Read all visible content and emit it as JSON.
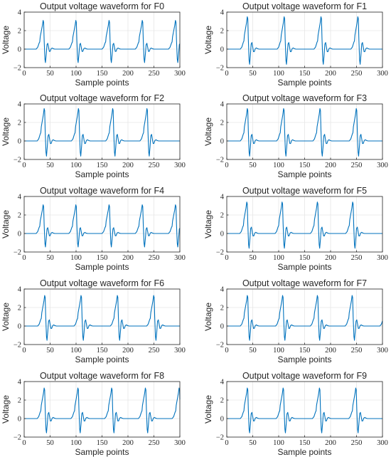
{
  "chart_data": [
    {
      "type": "line",
      "title": "Output voltage waveform for F0",
      "xlabel": "Sample points",
      "ylabel": "Voltage",
      "xlim": [
        0,
        300
      ],
      "ylim": [
        -2,
        4
      ],
      "xticks": [
        "0",
        "50",
        "100",
        "150",
        "200",
        "250",
        "300"
      ],
      "yticks": [
        "-2",
        "0",
        "2",
        "4"
      ],
      "grid": true,
      "series": [
        {
          "color": "#0072BD",
          "beat_onsets": [
            23,
            86,
            150,
            214,
            278
          ],
          "beat_amplitudes": [
            3.1,
            3.1,
            3.1,
            3.1,
            3.1
          ],
          "peak_value": 3.1,
          "trough_value": -1.5,
          "baseline": 0
        }
      ]
    },
    {
      "type": "line",
      "title": "Output voltage waveform for F1",
      "xlabel": "Sample points",
      "ylabel": "Voltage",
      "xlim": [
        0,
        300
      ],
      "ylim": [
        -2,
        4
      ],
      "xticks": [
        "0",
        "50",
        "100",
        "150",
        "200",
        "250",
        "300"
      ],
      "yticks": [
        "-2",
        "0",
        "2",
        "4"
      ],
      "grid": true,
      "series": [
        {
          "color": "#0072BD",
          "beat_onsets": [
            26,
            97,
            168,
            239
          ],
          "beat_amplitudes": [
            3.5,
            3.5,
            3.5,
            3.5
          ],
          "peak_value": 3.5,
          "trough_value": -1.5,
          "baseline": 0
        }
      ]
    },
    {
      "type": "line",
      "title": "Output voltage waveform for F2",
      "xlabel": "Sample points",
      "ylabel": "Voltage",
      "xlim": [
        0,
        300
      ],
      "ylim": [
        -2,
        4
      ],
      "xticks": [
        "0",
        "50",
        "100",
        "150",
        "200",
        "250",
        "300"
      ],
      "yticks": [
        "-2",
        "0",
        "2",
        "4"
      ],
      "grid": true,
      "series": [
        {
          "color": "#0072BD",
          "beat_onsets": [
            25,
            91,
            157,
            223
          ],
          "beat_amplitudes": [
            3.5,
            3.5,
            3.5,
            3.5
          ],
          "peak_value": 3.5,
          "trough_value": -1.6,
          "baseline": 0
        }
      ]
    },
    {
      "type": "line",
      "title": "Output voltage waveform for F3",
      "xlabel": "Sample points",
      "ylabel": "Voltage",
      "xlim": [
        0,
        300
      ],
      "ylim": [
        -2,
        4
      ],
      "xticks": [
        "0",
        "50",
        "100",
        "150",
        "200",
        "250",
        "300"
      ],
      "yticks": [
        "-2",
        "0",
        "2",
        "4"
      ],
      "grid": true,
      "series": [
        {
          "color": "#0072BD",
          "beat_onsets": [
            26,
            96,
            166,
            236
          ],
          "beat_amplitudes": [
            3.5,
            3.5,
            3.5,
            3.5
          ],
          "peak_value": 3.5,
          "trough_value": -1.6,
          "baseline": 0
        }
      ]
    },
    {
      "type": "line",
      "title": "Output voltage waveform for F4",
      "xlabel": "Sample points",
      "ylabel": "Voltage",
      "xlim": [
        0,
        300
      ],
      "ylim": [
        -2,
        4
      ],
      "xticks": [
        "0",
        "50",
        "100",
        "150",
        "200",
        "250",
        "300"
      ],
      "yticks": [
        "-2",
        "0",
        "2",
        "4"
      ],
      "grid": true,
      "series": [
        {
          "color": "#0072BD",
          "beat_onsets": [
            23,
            86,
            150,
            214,
            278
          ],
          "beat_amplitudes": [
            3.1,
            3.1,
            3.1,
            3.1,
            3.1
          ],
          "peak_value": 3.1,
          "trough_value": -1.5,
          "baseline": 0
        }
      ]
    },
    {
      "type": "line",
      "title": "Output voltage waveform for F5",
      "xlabel": "Sample points",
      "ylabel": "Voltage",
      "xlim": [
        0,
        300
      ],
      "ylim": [
        -2,
        4
      ],
      "xticks": [
        "0",
        "50",
        "100",
        "150",
        "200",
        "250",
        "300"
      ],
      "yticks": [
        "-2",
        "0",
        "2",
        "4"
      ],
      "grid": true,
      "series": [
        {
          "color": "#0072BD",
          "beat_onsets": [
            25,
            93,
            161,
            229
          ],
          "beat_amplitudes": [
            3.4,
            3.4,
            3.4,
            3.4
          ],
          "peak_value": 3.4,
          "trough_value": -1.5,
          "baseline": 0
        }
      ]
    },
    {
      "type": "line",
      "title": "Output voltage waveform for F6",
      "xlabel": "Sample points",
      "ylabel": "Voltage",
      "xlim": [
        0,
        300
      ],
      "ylim": [
        -2,
        4
      ],
      "xticks": [
        "0",
        "50",
        "100",
        "150",
        "200",
        "250",
        "300"
      ],
      "yticks": [
        "-2",
        "0",
        "2",
        "4"
      ],
      "grid": true,
      "series": [
        {
          "color": "#0072BD",
          "beat_onsets": [
            26,
            96,
            166,
            236
          ],
          "beat_amplitudes": [
            3.3,
            3.3,
            3.3,
            3.3
          ],
          "peak_value": 3.3,
          "trough_value": -1.5,
          "baseline": 0
        }
      ]
    },
    {
      "type": "line",
      "title": "Output voltage waveform for F7",
      "xlabel": "Sample points",
      "ylabel": "Voltage",
      "xlim": [
        0,
        300
      ],
      "ylim": [
        -2,
        4
      ],
      "xticks": [
        "0",
        "50",
        "100",
        "150",
        "200",
        "250",
        "300"
      ],
      "yticks": [
        "-2",
        "0",
        "2",
        "4"
      ],
      "grid": true,
      "series": [
        {
          "color": "#0072BD",
          "beat_onsets": [
            26,
            94,
            161,
            228,
            295
          ],
          "beat_amplitudes": [
            3.3,
            3.3,
            3.3,
            3.3,
            3.3
          ],
          "peak_value": 3.3,
          "trough_value": -1.5,
          "baseline": 0
        }
      ]
    },
    {
      "type": "line",
      "title": "Output voltage waveform for F8",
      "xlabel": "Sample points",
      "ylabel": "Voltage",
      "xlim": [
        0,
        300
      ],
      "ylim": [
        -2,
        4
      ],
      "xticks": [
        "0",
        "50",
        "100",
        "150",
        "200",
        "250",
        "300"
      ],
      "yticks": [
        "-2",
        "0",
        "2",
        "4"
      ],
      "grid": true,
      "series": [
        {
          "color": "#0072BD",
          "beat_onsets": [
            25,
            90,
            155,
            220,
            285
          ],
          "beat_amplitudes": [
            3.3,
            3.3,
            3.3,
            3.3,
            3.3
          ],
          "peak_value": 3.3,
          "trough_value": -1.5,
          "baseline": 0
        }
      ]
    },
    {
      "type": "line",
      "title": "Output voltage waveform for F9",
      "xlabel": "Sample points",
      "ylabel": "Voltage",
      "xlim": [
        0,
        300
      ],
      "ylim": [
        -2,
        4
      ],
      "xticks": [
        "0",
        "50",
        "100",
        "150",
        "200",
        "250",
        "300"
      ],
      "yticks": [
        "-2",
        "0",
        "2",
        "4"
      ],
      "grid": true,
      "series": [
        {
          "color": "#0072BD",
          "beat_onsets": [
            26,
            95,
            165,
            235
          ],
          "beat_amplitudes": [
            3.3,
            3.3,
            3.3,
            3.3
          ],
          "peak_value": 3.3,
          "trough_value": -1.5,
          "baseline": 0
        }
      ]
    }
  ]
}
